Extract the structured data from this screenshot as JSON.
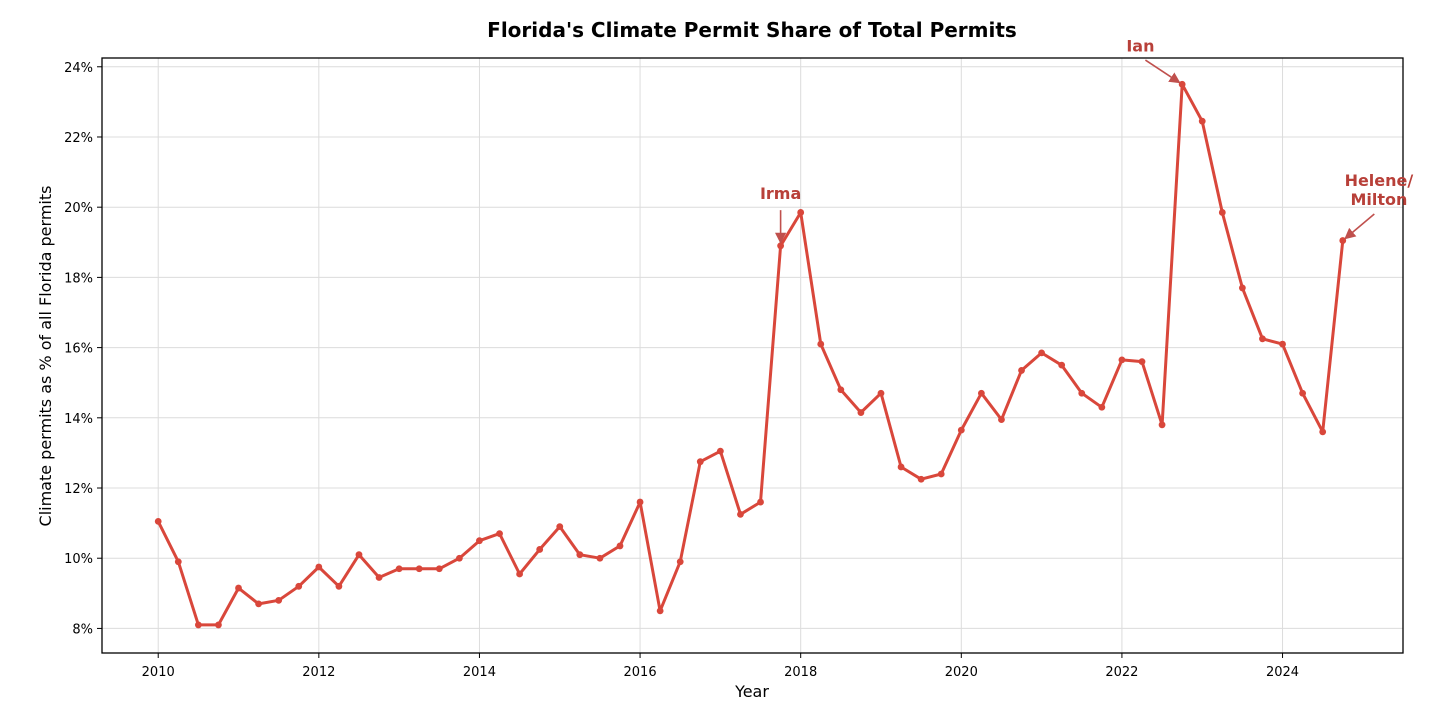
{
  "chart_data": {
    "type": "line",
    "title": "Florida's Climate Permit Share of Total Permits",
    "xlabel": "Year",
    "ylabel": "Climate permits as % of all Florida permits",
    "xlim": [
      2009.3,
      2025.5
    ],
    "ylim": [
      7.3,
      24.25
    ],
    "x_ticks": [
      2010,
      2012,
      2014,
      2016,
      2018,
      2020,
      2022,
      2024
    ],
    "y_ticks": [
      8,
      10,
      12,
      14,
      16,
      18,
      20,
      22,
      24
    ],
    "y_tick_format": "{v}%",
    "grid": true,
    "colors": {
      "line": "#d9473b",
      "annotation": "#b84039",
      "arrow": "#c0504d"
    },
    "series": [
      {
        "x": [
          2010.0,
          2010.25,
          2010.5,
          2010.75,
          2011.0,
          2011.25,
          2011.5,
          2011.75,
          2012.0,
          2012.25,
          2012.5,
          2012.75,
          2013.0,
          2013.25,
          2013.5,
          2013.75,
          2014.0,
          2014.25,
          2014.5,
          2014.75,
          2015.0,
          2015.25,
          2015.5,
          2015.75,
          2016.0,
          2016.25,
          2016.5,
          2016.75,
          2017.0,
          2017.25,
          2017.5,
          2017.75,
          2018.0,
          2018.25,
          2018.5,
          2018.75,
          2019.0,
          2019.25,
          2019.5,
          2019.75,
          2020.0,
          2020.25,
          2020.5,
          2020.75,
          2021.0,
          2021.25,
          2021.5,
          2021.75,
          2022.0,
          2022.25,
          2022.5,
          2022.75,
          2023.0,
          2023.25,
          2023.5,
          2023.75,
          2024.0,
          2024.25,
          2024.5,
          2024.75
        ],
        "values": [
          11.05,
          9.9,
          8.1,
          8.1,
          9.15,
          8.7,
          8.8,
          9.2,
          9.75,
          9.2,
          10.1,
          9.45,
          9.7,
          9.7,
          9.7,
          10.0,
          10.5,
          10.7,
          9.55,
          10.25,
          10.9,
          10.1,
          10.0,
          10.35,
          11.6,
          8.5,
          9.9,
          12.75,
          13.05,
          11.25,
          11.6,
          18.9,
          19.85,
          16.1,
          14.8,
          14.15,
          14.7,
          12.6,
          12.25,
          12.4,
          13.65,
          14.7,
          13.95,
          15.35,
          15.85,
          15.5,
          14.7,
          14.3,
          15.65,
          15.6,
          13.8,
          23.5,
          22.45,
          19.85,
          17.7,
          16.25,
          16.1,
          14.7,
          13.6,
          19.05
        ]
      }
    ],
    "annotations": [
      {
        "text": [
          "Irma"
        ],
        "x": 2017.75,
        "y": 18.9,
        "text_x": 2017.75,
        "text_y": 20.4
      },
      {
        "text": [
          "Ian"
        ],
        "x": 2022.75,
        "y": 23.5,
        "text_x": 2022.23,
        "text_y": 24.6
      },
      {
        "text": [
          "Helene/",
          "Milton"
        ],
        "x": 2024.75,
        "y": 19.05,
        "text_x": 2025.2,
        "text_y": 20.5
      }
    ]
  }
}
